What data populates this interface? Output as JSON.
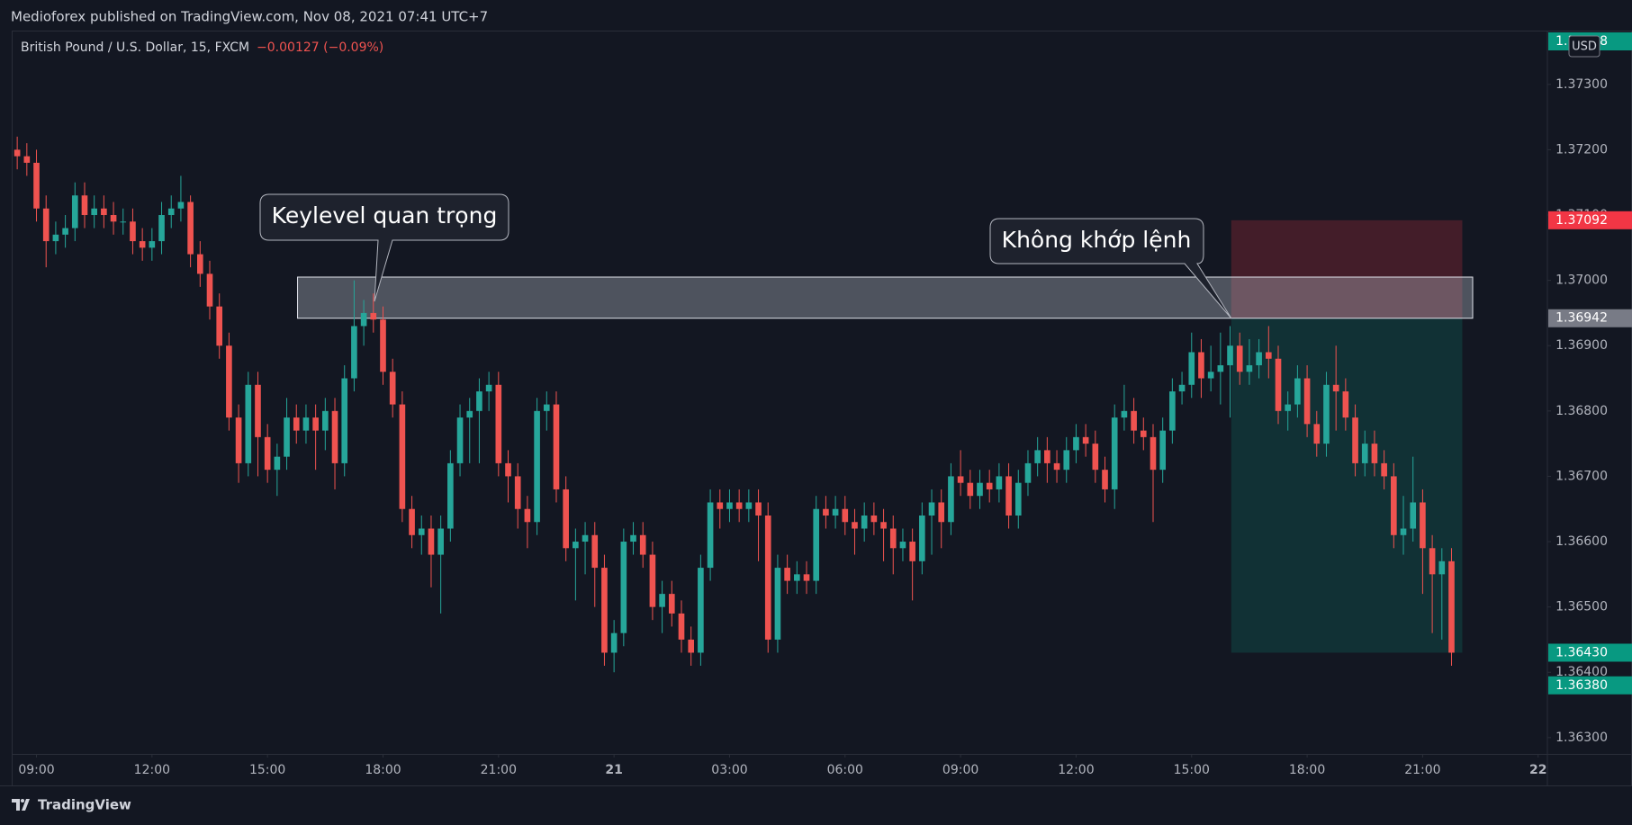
{
  "chart_data": {
    "type": "candlestick",
    "header": "Medioforex published on TradingView.com, Nov 08, 2021 07:41 UTC+7",
    "symbol": "British Pound / U.S. Dollar, 15, FXCM",
    "change": "−0.00127 (−0.09%)",
    "currency": "USD",
    "brand": "TradingView",
    "annotations": [
      {
        "text": "Keylevel quan trọng"
      },
      {
        "text": "Không khớp lệnh"
      }
    ],
    "up_color": "#26a69a",
    "down_color": "#ef5350",
    "grid": false,
    "xlim": [
      8.38,
      48.24
    ],
    "ylim": [
      1.36275,
      1.37381
    ],
    "xticks": [
      {
        "value": 9,
        "label": "09:00"
      },
      {
        "value": 12,
        "label": "12:00"
      },
      {
        "value": 15,
        "label": "15:00"
      },
      {
        "value": 18,
        "label": "18:00"
      },
      {
        "value": 21,
        "label": "21:00"
      },
      {
        "value": 24,
        "label": "21"
      },
      {
        "value": 27,
        "label": "03:00"
      },
      {
        "value": 30,
        "label": "06:00"
      },
      {
        "value": 33,
        "label": "09:00"
      },
      {
        "value": 36,
        "label": "12:00"
      },
      {
        "value": 39,
        "label": "15:00"
      },
      {
        "value": 42,
        "label": "18:00"
      },
      {
        "value": 45,
        "label": "21:00"
      },
      {
        "value": 48,
        "label": "22"
      }
    ],
    "yticks": [
      {
        "value": 1.363,
        "label": "1.36300"
      },
      {
        "value": 1.364,
        "label": "1.36400"
      },
      {
        "value": 1.365,
        "label": "1.36500"
      },
      {
        "value": 1.366,
        "label": "1.36600"
      },
      {
        "value": 1.367,
        "label": "1.36700"
      },
      {
        "value": 1.368,
        "label": "1.36800"
      },
      {
        "value": 1.369,
        "label": "1.36900"
      },
      {
        "value": 1.37,
        "label": "1.37000"
      },
      {
        "value": 1.371,
        "label": "1.37100"
      },
      {
        "value": 1.372,
        "label": "1.37200"
      },
      {
        "value": 1.373,
        "label": "1.37300"
      }
    ],
    "zones": [
      {
        "top": 1.37092,
        "bottom": 1.36942,
        "color": "rgba(242,54,69,0.22)"
      },
      {
        "top": 1.36942,
        "bottom": 1.3643,
        "color": "rgba(8,153,129,0.2)"
      },
      {
        "top": 1.37005,
        "bottom": 1.36942,
        "color": "rgba(190,195,205,0.35)"
      }
    ],
    "price_tags": [
      {
        "value": 1.37718,
        "label": "1.37718",
        "color": "#089981"
      },
      {
        "value": 1.37092,
        "label": "1.37092",
        "color": "#f23645"
      },
      {
        "value": 1.36942,
        "label": "1.36942",
        "color": "#787b86"
      },
      {
        "value": 1.3643,
        "label": "1.36430",
        "color": "#089981"
      },
      {
        "value": 1.3638,
        "label": "1.36380",
        "color": "#089981"
      }
    ],
    "x": [
      8.5,
      8.75,
      9,
      9.25,
      9.5,
      9.75,
      10,
      10.25,
      10.5,
      10.75,
      11,
      11.25,
      11.5,
      11.75,
      12,
      12.25,
      12.5,
      12.75,
      13,
      13.25,
      13.5,
      13.75,
      14,
      14.25,
      14.5,
      14.75,
      15,
      15.25,
      15.5,
      15.75,
      16,
      16.25,
      16.5,
      16.75,
      17,
      17.25,
      17.5,
      17.75,
      18,
      18.25,
      18.5,
      18.75,
      19,
      19.25,
      19.5,
      19.75,
      20,
      20.25,
      20.5,
      20.75,
      21,
      21.25,
      21.5,
      21.75,
      22,
      22.25,
      22.5,
      22.75,
      23,
      23.25,
      23.5,
      23.75,
      24,
      24.25,
      24.5,
      24.75,
      25,
      25.25,
      25.5,
      25.75,
      26,
      26.25,
      26.5,
      26.75,
      27,
      27.25,
      27.5,
      27.75,
      28,
      28.25,
      28.5,
      28.75,
      29,
      29.25,
      29.5,
      29.75,
      30,
      30.25,
      30.5,
      30.75,
      31,
      31.25,
      31.5,
      31.75,
      32,
      32.25,
      32.5,
      32.75,
      33,
      33.25,
      33.5,
      33.75,
      34,
      34.25,
      34.5,
      34.75,
      35,
      35.25,
      35.5,
      35.75,
      36,
      36.25,
      36.5,
      36.75,
      37,
      37.25,
      37.5,
      37.75,
      38,
      38.25,
      38.5,
      38.75,
      39,
      39.25,
      39.5,
      39.75,
      40,
      40.25,
      40.5,
      40.75,
      41,
      41.25,
      41.5,
      41.75,
      42,
      42.25,
      42.5,
      42.75,
      43,
      43.25,
      43.5,
      43.75,
      44,
      44.25,
      44.5,
      44.75,
      45,
      45.25,
      45.5,
      45.75
    ],
    "ohlc": [
      [
        1.372,
        1.3722,
        1.3717,
        1.3719
      ],
      [
        1.3719,
        1.3721,
        1.3716,
        1.3718
      ],
      [
        1.3718,
        1.372,
        1.3709,
        1.3711
      ],
      [
        1.3711,
        1.3713,
        1.3702,
        1.3706
      ],
      [
        1.3706,
        1.3709,
        1.3704,
        1.3707
      ],
      [
        1.3707,
        1.371,
        1.3705,
        1.3708
      ],
      [
        1.3708,
        1.3715,
        1.3706,
        1.3713
      ],
      [
        1.3713,
        1.3715,
        1.3708,
        1.371
      ],
      [
        1.371,
        1.3713,
        1.3708,
        1.3711
      ],
      [
        1.3711,
        1.3713,
        1.3708,
        1.371
      ],
      [
        1.371,
        1.3712,
        1.3707,
        1.3709
      ],
      [
        1.3709,
        1.3711,
        1.3707,
        1.3709
      ],
      [
        1.3709,
        1.3711,
        1.3704,
        1.3706
      ],
      [
        1.3706,
        1.3708,
        1.3703,
        1.3705
      ],
      [
        1.3705,
        1.3708,
        1.3703,
        1.3706
      ],
      [
        1.3706,
        1.3712,
        1.3704,
        1.371
      ],
      [
        1.371,
        1.3713,
        1.3708,
        1.3711
      ],
      [
        1.3711,
        1.3716,
        1.3709,
        1.3712
      ],
      [
        1.3712,
        1.3713,
        1.3702,
        1.3704
      ],
      [
        1.3704,
        1.3706,
        1.3699,
        1.3701
      ],
      [
        1.3701,
        1.3703,
        1.3694,
        1.3696
      ],
      [
        1.3696,
        1.3698,
        1.3688,
        1.369
      ],
      [
        1.369,
        1.3692,
        1.3677,
        1.3679
      ],
      [
        1.3679,
        1.3681,
        1.3669,
        1.3672
      ],
      [
        1.3672,
        1.3686,
        1.367,
        1.3684
      ],
      [
        1.3684,
        1.3686,
        1.367,
        1.3676
      ],
      [
        1.3676,
        1.3678,
        1.3669,
        1.3671
      ],
      [
        1.3671,
        1.3675,
        1.3667,
        1.3673
      ],
      [
        1.3673,
        1.3682,
        1.3671,
        1.3679
      ],
      [
        1.3679,
        1.3681,
        1.3675,
        1.3677
      ],
      [
        1.3677,
        1.3681,
        1.3675,
        1.3679
      ],
      [
        1.3679,
        1.3681,
        1.3671,
        1.3677
      ],
      [
        1.3677,
        1.3682,
        1.3674,
        1.368
      ],
      [
        1.368,
        1.3682,
        1.3668,
        1.3672
      ],
      [
        1.3672,
        1.3687,
        1.367,
        1.3685
      ],
      [
        1.3685,
        1.37,
        1.3683,
        1.3693
      ],
      [
        1.3693,
        1.3697,
        1.369,
        1.3695
      ],
      [
        1.3695,
        1.3698,
        1.3692,
        1.3694
      ],
      [
        1.3694,
        1.3696,
        1.3684,
        1.3686
      ],
      [
        1.3686,
        1.3688,
        1.3679,
        1.3681
      ],
      [
        1.3681,
        1.3683,
        1.3663,
        1.3665
      ],
      [
        1.3665,
        1.3667,
        1.3659,
        1.3661
      ],
      [
        1.3661,
        1.3664,
        1.3658,
        1.3662
      ],
      [
        1.3662,
        1.3664,
        1.3653,
        1.3658
      ],
      [
        1.3658,
        1.3664,
        1.3649,
        1.3662
      ],
      [
        1.3662,
        1.3674,
        1.366,
        1.3672
      ],
      [
        1.3672,
        1.3681,
        1.367,
        1.3679
      ],
      [
        1.3679,
        1.3682,
        1.3672,
        1.368
      ],
      [
        1.368,
        1.3685,
        1.3672,
        1.3683
      ],
      [
        1.3683,
        1.3686,
        1.368,
        1.3684
      ],
      [
        1.3684,
        1.3686,
        1.367,
        1.3672
      ],
      [
        1.3672,
        1.3674,
        1.3666,
        1.367
      ],
      [
        1.367,
        1.3672,
        1.3662,
        1.3665
      ],
      [
        1.3665,
        1.3667,
        1.3659,
        1.3663
      ],
      [
        1.3663,
        1.3682,
        1.3661,
        1.368
      ],
      [
        1.368,
        1.3683,
        1.3677,
        1.3681
      ],
      [
        1.3681,
        1.3683,
        1.3666,
        1.3668
      ],
      [
        1.3668,
        1.367,
        1.3657,
        1.3659
      ],
      [
        1.3659,
        1.3662,
        1.3651,
        1.366
      ],
      [
        1.366,
        1.3663,
        1.3655,
        1.3661
      ],
      [
        1.3661,
        1.3663,
        1.365,
        1.3656
      ],
      [
        1.3656,
        1.3658,
        1.3641,
        1.3643
      ],
      [
        1.3643,
        1.3648,
        1.364,
        1.3646
      ],
      [
        1.3646,
        1.3662,
        1.3644,
        1.366
      ],
      [
        1.366,
        1.3663,
        1.3658,
        1.3661
      ],
      [
        1.3661,
        1.3663,
        1.3656,
        1.3658
      ],
      [
        1.3658,
        1.366,
        1.3648,
        1.365
      ],
      [
        1.365,
        1.3654,
        1.3646,
        1.3652
      ],
      [
        1.3652,
        1.3654,
        1.3647,
        1.3649
      ],
      [
        1.3649,
        1.3651,
        1.3643,
        1.3645
      ],
      [
        1.3645,
        1.3647,
        1.3641,
        1.3643
      ],
      [
        1.3643,
        1.3658,
        1.3641,
        1.3656
      ],
      [
        1.3656,
        1.3668,
        1.3654,
        1.3666
      ],
      [
        1.3666,
        1.3668,
        1.3662,
        1.3665
      ],
      [
        1.3665,
        1.3668,
        1.3663,
        1.3666
      ],
      [
        1.3666,
        1.3668,
        1.3663,
        1.3665
      ],
      [
        1.3665,
        1.3668,
        1.3663,
        1.3666
      ],
      [
        1.3666,
        1.3668,
        1.3657,
        1.3664
      ],
      [
        1.3664,
        1.3666,
        1.3643,
        1.3645
      ],
      [
        1.3645,
        1.3658,
        1.3643,
        1.3656
      ],
      [
        1.3656,
        1.3658,
        1.3652,
        1.3654
      ],
      [
        1.3654,
        1.3657,
        1.3652,
        1.3655
      ],
      [
        1.3655,
        1.3657,
        1.3652,
        1.3654
      ],
      [
        1.3654,
        1.3667,
        1.3652,
        1.3665
      ],
      [
        1.3665,
        1.3667,
        1.3662,
        1.3664
      ],
      [
        1.3664,
        1.3667,
        1.3662,
        1.3665
      ],
      [
        1.3665,
        1.3667,
        1.3661,
        1.3663
      ],
      [
        1.3663,
        1.3665,
        1.3658,
        1.3662
      ],
      [
        1.3662,
        1.3666,
        1.366,
        1.3664
      ],
      [
        1.3664,
        1.3666,
        1.3661,
        1.3663
      ],
      [
        1.3663,
        1.3665,
        1.3657,
        1.3662
      ],
      [
        1.3662,
        1.3664,
        1.3655,
        1.3659
      ],
      [
        1.3659,
        1.3662,
        1.3657,
        1.366
      ],
      [
        1.366,
        1.3662,
        1.3651,
        1.3657
      ],
      [
        1.3657,
        1.3666,
        1.3655,
        1.3664
      ],
      [
        1.3664,
        1.3668,
        1.3658,
        1.3666
      ],
      [
        1.3666,
        1.3668,
        1.3659,
        1.3663
      ],
      [
        1.3663,
        1.3672,
        1.3661,
        1.367
      ],
      [
        1.367,
        1.3674,
        1.3667,
        1.3669
      ],
      [
        1.3669,
        1.3671,
        1.3665,
        1.3667
      ],
      [
        1.3667,
        1.3671,
        1.3665,
        1.3669
      ],
      [
        1.3669,
        1.3671,
        1.3666,
        1.3668
      ],
      [
        1.3668,
        1.3672,
        1.3666,
        1.367
      ],
      [
        1.367,
        1.3672,
        1.3662,
        1.3664
      ],
      [
        1.3664,
        1.3671,
        1.3662,
        1.3669
      ],
      [
        1.3669,
        1.3674,
        1.3667,
        1.3672
      ],
      [
        1.3672,
        1.3676,
        1.367,
        1.3674
      ],
      [
        1.3674,
        1.3676,
        1.3669,
        1.3672
      ],
      [
        1.3672,
        1.3674,
        1.3669,
        1.3671
      ],
      [
        1.3671,
        1.3676,
        1.3669,
        1.3674
      ],
      [
        1.3674,
        1.3678,
        1.3672,
        1.3676
      ],
      [
        1.3676,
        1.3678,
        1.3673,
        1.3675
      ],
      [
        1.3675,
        1.3677,
        1.3669,
        1.3671
      ],
      [
        1.3671,
        1.3673,
        1.3666,
        1.3668
      ],
      [
        1.3668,
        1.3681,
        1.3665,
        1.3679
      ],
      [
        1.3679,
        1.3684,
        1.3677,
        1.368
      ],
      [
        1.368,
        1.3682,
        1.3675,
        1.3677
      ],
      [
        1.3677,
        1.3679,
        1.3674,
        1.3676
      ],
      [
        1.3676,
        1.3678,
        1.3663,
        1.3671
      ],
      [
        1.3671,
        1.3679,
        1.3669,
        1.3677
      ],
      [
        1.3677,
        1.3685,
        1.3675,
        1.3683
      ],
      [
        1.3683,
        1.3686,
        1.3681,
        1.3684
      ],
      [
        1.3684,
        1.3692,
        1.3682,
        1.3689
      ],
      [
        1.3689,
        1.3691,
        1.3682,
        1.3685
      ],
      [
        1.3685,
        1.369,
        1.3683,
        1.3686
      ],
      [
        1.3686,
        1.3692,
        1.3681,
        1.3687
      ],
      [
        1.3687,
        1.3693,
        1.3679,
        1.369
      ],
      [
        1.369,
        1.3692,
        1.3684,
        1.3686
      ],
      [
        1.3686,
        1.3691,
        1.3684,
        1.3687
      ],
      [
        1.3687,
        1.3691,
        1.3685,
        1.3689
      ],
      [
        1.3689,
        1.3693,
        1.3685,
        1.3688
      ],
      [
        1.3688,
        1.369,
        1.3678,
        1.368
      ],
      [
        1.368,
        1.3683,
        1.3677,
        1.3681
      ],
      [
        1.3681,
        1.3687,
        1.3679,
        1.3685
      ],
      [
        1.3685,
        1.3687,
        1.3676,
        1.3678
      ],
      [
        1.3678,
        1.368,
        1.3673,
        1.3675
      ],
      [
        1.3675,
        1.3686,
        1.3673,
        1.3684
      ],
      [
        1.3684,
        1.369,
        1.3677,
        1.3683
      ],
      [
        1.3683,
        1.3685,
        1.3677,
        1.3679
      ],
      [
        1.3679,
        1.3681,
        1.367,
        1.3672
      ],
      [
        1.3672,
        1.3677,
        1.367,
        1.3675
      ],
      [
        1.3675,
        1.3677,
        1.367,
        1.3672
      ],
      [
        1.3672,
        1.3674,
        1.3668,
        1.367
      ],
      [
        1.367,
        1.3672,
        1.3659,
        1.3661
      ],
      [
        1.3661,
        1.3667,
        1.3658,
        1.3662
      ],
      [
        1.3662,
        1.3673,
        1.366,
        1.3666
      ],
      [
        1.3666,
        1.3668,
        1.3652,
        1.3659
      ],
      [
        1.3659,
        1.3661,
        1.3646,
        1.3655
      ],
      [
        1.3655,
        1.3659,
        1.3645,
        1.3657
      ],
      [
        1.3657,
        1.3659,
        1.3641,
        1.3643
      ]
    ]
  }
}
